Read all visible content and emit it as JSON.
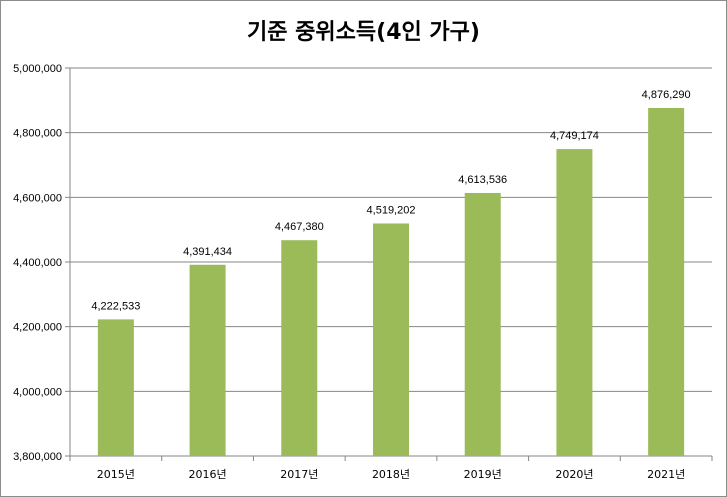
{
  "chart_data": {
    "type": "bar",
    "title": "기준 중위소득(4인 가구)",
    "xlabel": "",
    "ylabel": "",
    "categories": [
      "2015년",
      "2016년",
      "2017년",
      "2018년",
      "2019년",
      "2020년",
      "2021년"
    ],
    "values": [
      4222533,
      4391434,
      4467380,
      4519202,
      4613536,
      4749174,
      4876290
    ],
    "value_labels": [
      "4,222,533",
      "4,391,434",
      "4,467,380",
      "4,519,202",
      "4,613,536",
      "4,749,174",
      "4,876,290"
    ],
    "ylim": [
      3800000,
      5000000
    ],
    "yticks": [
      3800000,
      4000000,
      4200000,
      4400000,
      4600000,
      4800000,
      5000000
    ],
    "ytick_labels": [
      "3,800,000",
      "4,000,000",
      "4,200,000",
      "4,400,000",
      "4,600,000",
      "4,800,000",
      "5,000,000"
    ],
    "grid": true,
    "legend": "none",
    "bar_color": "#9bbb59"
  }
}
